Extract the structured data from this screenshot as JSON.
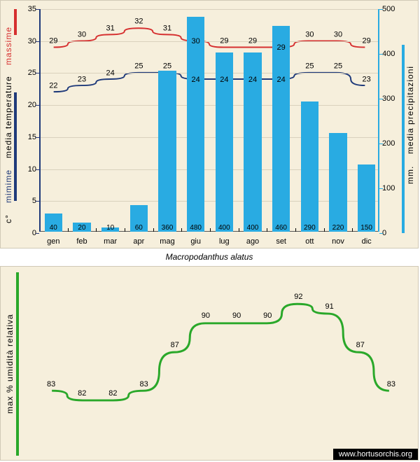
{
  "caption": "Macropodanthus alatus",
  "source": "www.hortusorchis.org",
  "months": [
    "gen",
    "feb",
    "mar",
    "apr",
    "mag",
    "giu",
    "lug",
    "ago",
    "set",
    "ott",
    "nov",
    "dic"
  ],
  "top_chart": {
    "type": "combo-bar-line",
    "background_color": "#f6efdc",
    "left_axis": {
      "label_segments": [
        {
          "text": "c°",
          "color": "#000000"
        },
        {
          "text": "mimime",
          "color": "#1f3a7a"
        },
        {
          "text": "media  temperature",
          "color": "#000000"
        },
        {
          "text": "massime",
          "color": "#d62f2f"
        }
      ],
      "min": 0,
      "max": 35,
      "step": 5,
      "axis_color": "#1f3a7a",
      "marker_bars": [
        {
          "color": "#d62f2f",
          "from": 31,
          "to": 35
        },
        {
          "color": "#1f3a7a",
          "from": 5,
          "to": 22
        }
      ]
    },
    "right_axis": {
      "label_segments": [
        {
          "text": "mm.",
          "color": "#000000"
        },
        {
          "text": "media  precipitazioni",
          "color": "#000000"
        }
      ],
      "min": 0,
      "max": 500,
      "step": 100,
      "axis_color": "#29abe2",
      "marker_bar": {
        "color": "#29abe2",
        "from": 0,
        "to": 420
      }
    },
    "bars": {
      "color": "#29abe2",
      "width_frac": 0.62,
      "values": [
        40,
        20,
        10,
        60,
        360,
        480,
        400,
        400,
        460,
        290,
        220,
        150
      ],
      "label_fontsize": 10
    },
    "line_max": {
      "color": "#d62f2f",
      "width": 2,
      "values": [
        29,
        30,
        31,
        32,
        31,
        30,
        29,
        29,
        29,
        30,
        30,
        29
      ]
    },
    "line_min": {
      "color": "#1f3a7a",
      "width": 2,
      "values": [
        22,
        23,
        24,
        25,
        25,
        24,
        24,
        24,
        24,
        25,
        25,
        23
      ]
    },
    "grid_color": "#d9d1bd"
  },
  "bottom_chart": {
    "type": "line",
    "background_color": "#f6efdc",
    "left_label": {
      "text": "max % umidità relativa",
      "color": "#000000"
    },
    "y_min": 78,
    "y_max": 95,
    "line": {
      "color": "#2aa82a",
      "width": 3,
      "values": [
        83,
        82,
        82,
        83,
        87,
        90,
        90,
        90,
        92,
        91,
        87,
        83
      ]
    },
    "marker_bar": {
      "color": "#2aa82a"
    }
  }
}
